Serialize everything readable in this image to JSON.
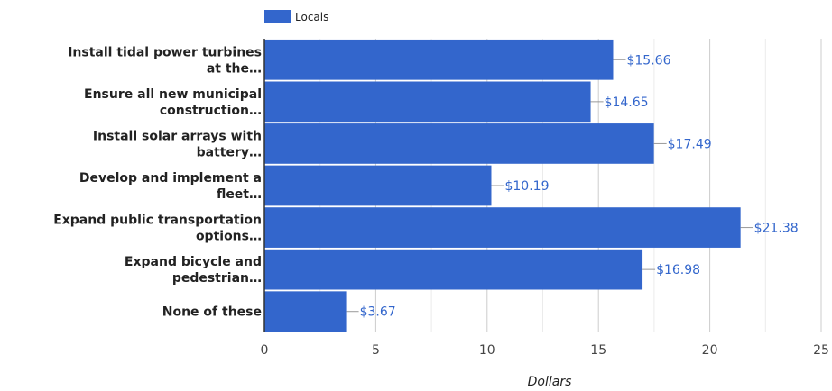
{
  "chart_data": {
    "type": "bar",
    "orientation": "horizontal",
    "categories": [
      [
        "Install tidal power turbines",
        "at the…"
      ],
      [
        "Ensure all new municipal",
        "construction…"
      ],
      [
        "Install solar arrays with",
        "battery…"
      ],
      [
        "Develop and implement a",
        "fleet…"
      ],
      [
        "Expand public transportation",
        "options…"
      ],
      [
        "Expand bicycle and",
        "pedestrian…"
      ],
      [
        "None of these"
      ]
    ],
    "series": [
      {
        "name": "Locals",
        "color": "#3366cc",
        "values": [
          15.66,
          14.65,
          17.49,
          10.19,
          21.38,
          16.98,
          3.67
        ],
        "labels": [
          "$15.66",
          "$14.65",
          "$17.49",
          "$10.19",
          "$21.38",
          "$16.98",
          "$3.67"
        ]
      }
    ],
    "xlabel": "Dollars",
    "xlim": [
      0,
      25
    ],
    "xticks": [
      0,
      5,
      10,
      15,
      20,
      25
    ],
    "xtick_labels": [
      "0",
      "5",
      "10",
      "15",
      "20",
      "25"
    ],
    "grid": true,
    "legend_position": "top"
  }
}
